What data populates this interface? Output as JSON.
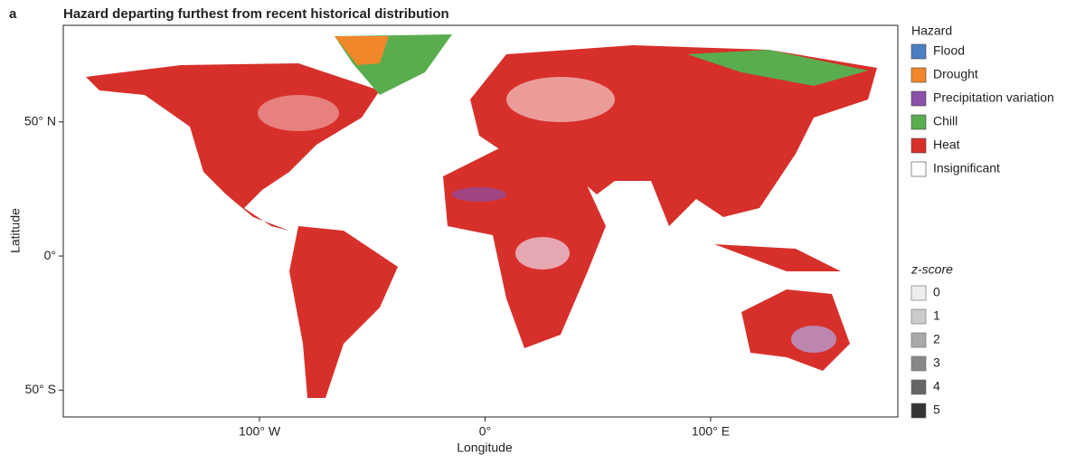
{
  "panel_label": "a",
  "chart_data": {
    "type": "map",
    "title": "Hazard departing furthest from recent historical distribution",
    "x_label": "Longitude",
    "y_label": "Latitude",
    "xlim": [
      -187,
      183
    ],
    "ylim": [
      -60,
      86
    ],
    "xticks": [
      {
        "value": -100,
        "label": "100° W"
      },
      {
        "value": 0,
        "label": "0°"
      },
      {
        "value": 100,
        "label": "100° E"
      }
    ],
    "yticks": [
      {
        "value": 50,
        "label": "50° N"
      },
      {
        "value": 0,
        "label": "0°"
      },
      {
        "value": -50,
        "label": "50° S"
      }
    ],
    "legend_title": "Hazard",
    "legend": [
      {
        "name": "Flood",
        "color": "#4a7fc1"
      },
      {
        "name": "Drought",
        "color": "#f0872a"
      },
      {
        "name": "Precipitation variation",
        "color": "#8a4fa8"
      },
      {
        "name": "Chill",
        "color": "#5aad4f"
      },
      {
        "name": "Heat",
        "color": "#d7302b"
      },
      {
        "name": "Insignificant",
        "color": "#ffffff"
      }
    ],
    "zscore_title": "z-score",
    "zscores": [
      0,
      1,
      2,
      3,
      4,
      5
    ],
    "zscore_colors": [
      "#eeeeee",
      "#cccccc",
      "#aaaaaa",
      "#888888",
      "#666666",
      "#333333"
    ]
  }
}
